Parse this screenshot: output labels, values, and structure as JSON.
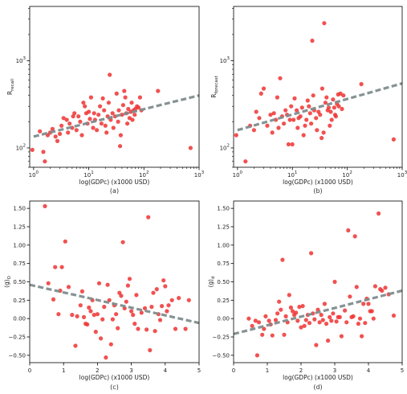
{
  "chart_data": [
    {
      "panel": "a",
      "type": "scatter",
      "caption": "(a)",
      "xlabel": "log(GDPc) (x1000 USD)",
      "ylabel": "R",
      "ylabel_sub": "recall",
      "xscale": "log",
      "yscale": "log",
      "xlim": [
        0.85,
        1000
      ],
      "ylim": [
        60,
        4200
      ],
      "xticks": [
        1,
        10,
        100,
        1000
      ],
      "xtick_labels": [
        "10^0",
        "10^1",
        "10^2",
        "10^3"
      ],
      "yticks": [
        100,
        1000
      ],
      "ytick_labels": [
        "10^2",
        "10^3"
      ],
      "point_color": "#ee3333",
      "trend_color": "#7f8c8d",
      "trend": {
        "x": [
          1,
          1000
        ],
        "y": [
          135,
          400
        ]
      },
      "points": [
        [
          0.95,
          95
        ],
        [
          1.3,
          155
        ],
        [
          1.5,
          90
        ],
        [
          1.6,
          70
        ],
        [
          1.8,
          140
        ],
        [
          2.0,
          150
        ],
        [
          2.2,
          165
        ],
        [
          2.5,
          135
        ],
        [
          2.7,
          120
        ],
        [
          3.0,
          145
        ],
        [
          3.2,
          180
        ],
        [
          3.5,
          220
        ],
        [
          4.0,
          210
        ],
        [
          4.2,
          150
        ],
        [
          4.5,
          190
        ],
        [
          5.0,
          170
        ],
        [
          5.2,
          230
        ],
        [
          5.5,
          250
        ],
        [
          6.0,
          160
        ],
        [
          6.5,
          230
        ],
        [
          7.0,
          200
        ],
        [
          7.5,
          140
        ],
        [
          8.0,
          330
        ],
        [
          8.5,
          300
        ],
        [
          9.0,
          250
        ],
        [
          9.5,
          190
        ],
        [
          10,
          260
        ],
        [
          10.5,
          215
        ],
        [
          11,
          380
        ],
        [
          12,
          170
        ],
        [
          12.5,
          250
        ],
        [
          13,
          210
        ],
        [
          14,
          160
        ],
        [
          15,
          240
        ],
        [
          16,
          300
        ],
        [
          17,
          190
        ],
        [
          18,
          370
        ],
        [
          19,
          270
        ],
        [
          20,
          180
        ],
        [
          21,
          150
        ],
        [
          22,
          230
        ],
        [
          23,
          330
        ],
        [
          24,
          690
        ],
        [
          25,
          210
        ],
        [
          27,
          250
        ],
        [
          28,
          170
        ],
        [
          30,
          230
        ],
        [
          32,
          420
        ],
        [
          34,
          200
        ],
        [
          35,
          270
        ],
        [
          37,
          105
        ],
        [
          38,
          140
        ],
        [
          40,
          240
        ],
        [
          42,
          310
        ],
        [
          44,
          450
        ],
        [
          46,
          380
        ],
        [
          48,
          250
        ],
        [
          50,
          190
        ],
        [
          52,
          280
        ],
        [
          55,
          220
        ],
        [
          58,
          260
        ],
        [
          60,
          330
        ],
        [
          62,
          210
        ],
        [
          65,
          270
        ],
        [
          68,
          240
        ],
        [
          70,
          280
        ],
        [
          75,
          300
        ],
        [
          80,
          290
        ],
        [
          85,
          380
        ],
        [
          90,
          270
        ],
        [
          180,
          450
        ],
        [
          700,
          100
        ]
      ]
    },
    {
      "panel": "b",
      "type": "scatter",
      "caption": "(b)",
      "xlabel": "log(GDPc) (x1000 USD)",
      "ylabel": "R",
      "ylabel_sub": "forecast",
      "xscale": "log",
      "yscale": "log",
      "xlim": [
        0.85,
        1000
      ],
      "ylim": [
        60,
        4200
      ],
      "xticks": [
        1,
        10,
        100,
        1000
      ],
      "xtick_labels": [
        "10^0",
        "10^1",
        "10^2",
        "10^3"
      ],
      "yticks": [
        100,
        1000
      ],
      "ytick_labels": [
        "10^2",
        "10^3"
      ],
      "point_color": "#ee3333",
      "trend_color": "#7f8c8d",
      "trend": {
        "x": [
          1,
          1000
        ],
        "y": [
          160,
          550
        ]
      },
      "points": [
        [
          0.95,
          140
        ],
        [
          1.4,
          70
        ],
        [
          1.7,
          180
        ],
        [
          2.0,
          160
        ],
        [
          2.2,
          260
        ],
        [
          2.5,
          220
        ],
        [
          2.7,
          420
        ],
        [
          3.0,
          480
        ],
        [
          3.5,
          180
        ],
        [
          4.0,
          240
        ],
        [
          4.3,
          150
        ],
        [
          4.6,
          250
        ],
        [
          5.0,
          210
        ],
        [
          5.3,
          380
        ],
        [
          5.6,
          170
        ],
        [
          6.0,
          630
        ],
        [
          6.5,
          230
        ],
        [
          7.0,
          190
        ],
        [
          7.5,
          270
        ],
        [
          8.0,
          240
        ],
        [
          8.5,
          110
        ],
        [
          9.0,
          210
        ],
        [
          9.5,
          300
        ],
        [
          10,
          110
        ],
        [
          10.5,
          210
        ],
        [
          11,
          370
        ],
        [
          12,
          270
        ],
        [
          12.5,
          170
        ],
        [
          13,
          220
        ],
        [
          14,
          230
        ],
        [
          15,
          290
        ],
        [
          16,
          140
        ],
        [
          17,
          180
        ],
        [
          18,
          210
        ],
        [
          19,
          350
        ],
        [
          20,
          300
        ],
        [
          21,
          250
        ],
        [
          22,
          190
        ],
        [
          23,
          1700
        ],
        [
          24,
          400
        ],
        [
          25,
          270
        ],
        [
          27,
          220
        ],
        [
          28,
          160
        ],
        [
          30,
          260
        ],
        [
          32,
          240
        ],
        [
          34,
          130
        ],
        [
          35,
          480
        ],
        [
          37,
          150
        ],
        [
          38,
          2700
        ],
        [
          40,
          330
        ],
        [
          42,
          380
        ],
        [
          44,
          270
        ],
        [
          46,
          290
        ],
        [
          48,
          180
        ],
        [
          50,
          260
        ],
        [
          52,
          210
        ],
        [
          55,
          360
        ],
        [
          58,
          290
        ],
        [
          60,
          240
        ],
        [
          62,
          230
        ],
        [
          65,
          320
        ],
        [
          68,
          410
        ],
        [
          70,
          300
        ],
        [
          75,
          420
        ],
        [
          80,
          280
        ],
        [
          85,
          400
        ],
        [
          180,
          540
        ],
        [
          700,
          125
        ]
      ]
    },
    {
      "panel": "c",
      "type": "scatter",
      "caption": "(c)",
      "xlabel": "log(GDPc) (x1000 USD)",
      "ylabel": "⟨g⟩",
      "ylabel_sub": "O",
      "xscale": "linear",
      "yscale": "linear",
      "xlim": [
        0,
        5
      ],
      "ylim": [
        -0.6,
        1.6
      ],
      "xticks": [
        0,
        1,
        2,
        3,
        4,
        5
      ],
      "xtick_labels": [
        "0",
        "1",
        "2",
        "3",
        "4",
        "5"
      ],
      "yticks": [
        -0.5,
        -0.25,
        0.0,
        0.25,
        0.5,
        0.75,
        1.0,
        1.25,
        1.5
      ],
      "ytick_labels": [
        "−0.50",
        "−0.25",
        "0.00",
        "0.25",
        "0.50",
        "0.75",
        "1.00",
        "1.25",
        "1.50"
      ],
      "point_color": "#ee3333",
      "trend_color": "#7f8c8d",
      "trend": {
        "x": [
          0,
          5
        ],
        "y": [
          0.46,
          -0.06
        ]
      },
      "points": [
        [
          0.45,
          1.53
        ],
        [
          0.55,
          0.48
        ],
        [
          0.7,
          0.26
        ],
        [
          0.75,
          0.7
        ],
        [
          0.85,
          0.06
        ],
        [
          0.9,
          0.38
        ],
        [
          0.95,
          0.7
        ],
        [
          1.05,
          1.05
        ],
        [
          1.15,
          0.43
        ],
        [
          1.25,
          0.05
        ],
        [
          1.35,
          -0.37
        ],
        [
          1.4,
          0.03
        ],
        [
          1.5,
          0.18
        ],
        [
          1.55,
          0.37
        ],
        [
          1.6,
          0.02
        ],
        [
          1.65,
          -0.07
        ],
        [
          1.7,
          -0.08
        ],
        [
          1.75,
          0.15
        ],
        [
          1.8,
          0.1
        ],
        [
          1.85,
          0.25
        ],
        [
          1.9,
          0.05
        ],
        [
          1.95,
          -0.18
        ],
        [
          2.0,
          0.06
        ],
        [
          2.05,
          0.48
        ],
        [
          2.1,
          -0.27
        ],
        [
          2.15,
          -0.01
        ],
        [
          2.2,
          0.16
        ],
        [
          2.25,
          -0.53
        ],
        [
          2.3,
          0.46
        ],
        [
          2.35,
          0.25
        ],
        [
          2.4,
          -0.35
        ],
        [
          2.45,
          -0.01
        ],
        [
          2.5,
          0.18
        ],
        [
          2.55,
          0.06
        ],
        [
          2.6,
          -0.13
        ],
        [
          2.65,
          0.35
        ],
        [
          2.7,
          0.31
        ],
        [
          2.75,
          1.04
        ],
        [
          2.8,
          0.14
        ],
        [
          2.85,
          0.23
        ],
        [
          2.9,
          0.45
        ],
        [
          2.95,
          0.54
        ],
        [
          3.0,
          0.1
        ],
        [
          3.05,
          0.05
        ],
        [
          3.1,
          -0.07
        ],
        [
          3.15,
          0.32
        ],
        [
          3.2,
          -0.14
        ],
        [
          3.3,
          0.08
        ],
        [
          3.4,
          0.14
        ],
        [
          3.45,
          -0.15
        ],
        [
          3.5,
          1.38
        ],
        [
          3.55,
          -0.43
        ],
        [
          3.6,
          0.16
        ],
        [
          3.65,
          0.35
        ],
        [
          3.7,
          -0.17
        ],
        [
          3.75,
          0.4
        ],
        [
          3.8,
          0.06
        ],
        [
          3.85,
          -0.02
        ],
        [
          3.9,
          0.17
        ],
        [
          3.95,
          0.52
        ],
        [
          4.0,
          0.44
        ],
        [
          4.05,
          0.1
        ],
        [
          4.1,
          0.18
        ],
        [
          4.2,
          0.25
        ],
        [
          4.3,
          -0.14
        ],
        [
          4.4,
          0.28
        ],
        [
          4.6,
          -0.14
        ],
        [
          4.7,
          0.25
        ]
      ]
    },
    {
      "panel": "d",
      "type": "scatter",
      "caption": "(d)",
      "xlabel": "log(GDPc) (x1000 USD)",
      "ylabel": "⟨g⟩",
      "ylabel_sub": "d",
      "xscale": "linear",
      "yscale": "linear",
      "xlim": [
        0,
        5
      ],
      "ylim": [
        -0.6,
        1.6
      ],
      "xticks": [
        0,
        1,
        2,
        3,
        4,
        5
      ],
      "xtick_labels": [
        "0",
        "1",
        "2",
        "3",
        "4",
        "5"
      ],
      "yticks": [
        -0.5,
        -0.25,
        0.0,
        0.25,
        0.5,
        0.75,
        1.0,
        1.25,
        1.5
      ],
      "ytick_labels": [
        "−0.50",
        "−0.25",
        "0.00",
        "0.25",
        "0.50",
        "0.75",
        "1.00",
        "1.25",
        "1.50"
      ],
      "point_color": "#ee3333",
      "trend_color": "#7f8c8d",
      "trend": {
        "x": [
          0,
          5
        ],
        "y": [
          -0.21,
          0.38
        ]
      },
      "points": [
        [
          0.45,
          0.0
        ],
        [
          0.55,
          -0.1
        ],
        [
          0.65,
          -0.03
        ],
        [
          0.7,
          -0.5
        ],
        [
          0.75,
          -0.05
        ],
        [
          0.85,
          -0.22
        ],
        [
          0.9,
          -0.14
        ],
        [
          0.95,
          0.03
        ],
        [
          1.05,
          -0.03
        ],
        [
          1.1,
          -0.08
        ],
        [
          1.15,
          -0.23
        ],
        [
          1.25,
          -0.02
        ],
        [
          1.3,
          0.07
        ],
        [
          1.35,
          0.23
        ],
        [
          1.4,
          0.12
        ],
        [
          1.45,
          0.8
        ],
        [
          1.5,
          -0.22
        ],
        [
          1.55,
          0.03
        ],
        [
          1.6,
          -0.05
        ],
        [
          1.65,
          0.32
        ],
        [
          1.7,
          0.15
        ],
        [
          1.75,
          0.1
        ],
        [
          1.8,
          0.05
        ],
        [
          1.85,
          0.08
        ],
        [
          1.9,
          -0.03
        ],
        [
          1.95,
          0.16
        ],
        [
          2.0,
          -0.12
        ],
        [
          2.05,
          0.17
        ],
        [
          2.1,
          -0.1
        ],
        [
          2.15,
          -0.02
        ],
        [
          2.2,
          0.05
        ],
        [
          2.25,
          -0.06
        ],
        [
          2.3,
          0.89
        ],
        [
          2.35,
          0.07
        ],
        [
          2.4,
          -0.01
        ],
        [
          2.45,
          -0.36
        ],
        [
          2.5,
          0.12
        ],
        [
          2.55,
          -0.05
        ],
        [
          2.6,
          0.05
        ],
        [
          2.65,
          -0.02
        ],
        [
          2.7,
          0.2
        ],
        [
          2.75,
          -0.07
        ],
        [
          2.8,
          -0.3
        ],
        [
          2.85,
          0.02
        ],
        [
          2.9,
          -0.03
        ],
        [
          2.95,
          0.07
        ],
        [
          3.0,
          0.5
        ],
        [
          3.05,
          -0.04
        ],
        [
          3.1,
          0.02
        ],
        [
          3.15,
          0.02
        ],
        [
          3.2,
          -0.24
        ],
        [
          3.3,
          0.11
        ],
        [
          3.35,
          -0.05
        ],
        [
          3.4,
          1.2
        ],
        [
          3.45,
          0.3
        ],
        [
          3.5,
          0.02
        ],
        [
          3.55,
          0.03
        ],
        [
          3.6,
          1.12
        ],
        [
          3.65,
          0.43
        ],
        [
          3.7,
          -0.07
        ],
        [
          3.75,
          0.0
        ],
        [
          3.8,
          -0.24
        ],
        [
          3.85,
          0.2
        ],
        [
          3.9,
          -0.06
        ],
        [
          3.95,
          0.27
        ],
        [
          4.0,
          0.2
        ],
        [
          4.05,
          0.1
        ],
        [
          4.1,
          0.1
        ],
        [
          4.15,
          0.0
        ],
        [
          4.2,
          0.44
        ],
        [
          4.3,
          1.43
        ],
        [
          4.35,
          0.4
        ],
        [
          4.4,
          0.38
        ],
        [
          4.5,
          0.42
        ],
        [
          4.6,
          0.33
        ],
        [
          4.75,
          0.04
        ]
      ]
    }
  ]
}
